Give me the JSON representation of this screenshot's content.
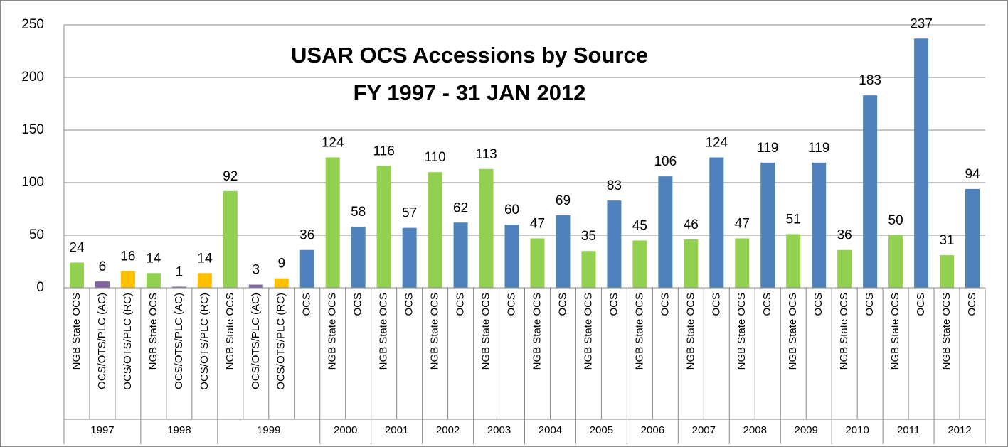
{
  "chart_data": {
    "type": "bar",
    "title": "USAR OCS Accessions by Source",
    "subtitle": "FY 1997 - 31 JAN 2012",
    "ylim": [
      0,
      250
    ],
    "yticks": [
      0,
      50,
      100,
      150,
      200,
      250
    ],
    "grid": true,
    "groups": [
      {
        "name": "1997",
        "bars": [
          {
            "category": "NGB State OCS",
            "value": 24,
            "color": "#92d050"
          },
          {
            "category": "OCS/OTS/PLC (AC)",
            "value": 6,
            "color": "#8064a2"
          },
          {
            "category": "OCS/OTS/PLC (RC)",
            "value": 16,
            "color": "#ffc000"
          }
        ]
      },
      {
        "name": "1998",
        "bars": [
          {
            "category": "NGB State OCS",
            "value": 14,
            "color": "#92d050"
          },
          {
            "category": "OCS/OTS/PLC (AC)",
            "value": 1,
            "color": "#8064a2"
          },
          {
            "category": "OCS/OTS/PLC (RC)",
            "value": 14,
            "color": "#ffc000"
          }
        ]
      },
      {
        "name": "1999",
        "bars": [
          {
            "category": "NGB State OCS",
            "value": 92,
            "color": "#92d050"
          },
          {
            "category": "OCS/OTS/PLC (AC)",
            "value": 3,
            "color": "#8064a2"
          },
          {
            "category": "OCS/OTS/PLC (RC)",
            "value": 9,
            "color": "#ffc000"
          },
          {
            "category": "OCS",
            "value": 36,
            "color": "#4f81bd"
          }
        ]
      },
      {
        "name": "2000",
        "bars": [
          {
            "category": "NGB State OCS",
            "value": 124,
            "color": "#92d050"
          },
          {
            "category": "OCS",
            "value": 58,
            "color": "#4f81bd"
          }
        ]
      },
      {
        "name": "2001",
        "bars": [
          {
            "category": "NGB State OCS",
            "value": 116,
            "color": "#92d050"
          },
          {
            "category": "OCS",
            "value": 57,
            "color": "#4f81bd"
          }
        ]
      },
      {
        "name": "2002",
        "bars": [
          {
            "category": "NGB State OCS",
            "value": 110,
            "color": "#92d050"
          },
          {
            "category": "OCS",
            "value": 62,
            "color": "#4f81bd"
          }
        ]
      },
      {
        "name": "2003",
        "bars": [
          {
            "category": "NGB State OCS",
            "value": 113,
            "color": "#92d050"
          },
          {
            "category": "OCS",
            "value": 60,
            "color": "#4f81bd"
          }
        ]
      },
      {
        "name": "2004",
        "bars": [
          {
            "category": "NGB State OCS",
            "value": 47,
            "color": "#92d050"
          },
          {
            "category": "OCS",
            "value": 69,
            "color": "#4f81bd"
          }
        ]
      },
      {
        "name": "2005",
        "bars": [
          {
            "category": "NGB State OCS",
            "value": 35,
            "color": "#92d050"
          },
          {
            "category": "OCS",
            "value": 83,
            "color": "#4f81bd"
          }
        ]
      },
      {
        "name": "2006",
        "bars": [
          {
            "category": "NGB State OCS",
            "value": 45,
            "color": "#92d050"
          },
          {
            "category": "OCS",
            "value": 106,
            "color": "#4f81bd"
          }
        ]
      },
      {
        "name": "2007",
        "bars": [
          {
            "category": "NGB State OCS",
            "value": 46,
            "color": "#92d050"
          },
          {
            "category": "OCS",
            "value": 124,
            "color": "#4f81bd"
          }
        ]
      },
      {
        "name": "2008",
        "bars": [
          {
            "category": "NGB State OCS",
            "value": 47,
            "color": "#92d050"
          },
          {
            "category": "OCS",
            "value": 119,
            "color": "#4f81bd"
          }
        ]
      },
      {
        "name": "2009",
        "bars": [
          {
            "category": "NGB State OCS",
            "value": 51,
            "color": "#92d050"
          },
          {
            "category": "OCS",
            "value": 119,
            "color": "#4f81bd"
          }
        ]
      },
      {
        "name": "2010",
        "bars": [
          {
            "category": "NGB State OCS",
            "value": 36,
            "color": "#92d050"
          },
          {
            "category": "OCS",
            "value": 183,
            "color": "#4f81bd"
          }
        ]
      },
      {
        "name": "2011",
        "bars": [
          {
            "category": "NGB State OCS",
            "value": 50,
            "color": "#92d050"
          },
          {
            "category": "OCS",
            "value": 237,
            "color": "#4f81bd"
          }
        ]
      },
      {
        "name": "2012",
        "bars": [
          {
            "category": "NGB State OCS",
            "value": 31,
            "color": "#92d050"
          },
          {
            "category": "OCS",
            "value": 94,
            "color": "#4f81bd"
          }
        ]
      }
    ]
  }
}
